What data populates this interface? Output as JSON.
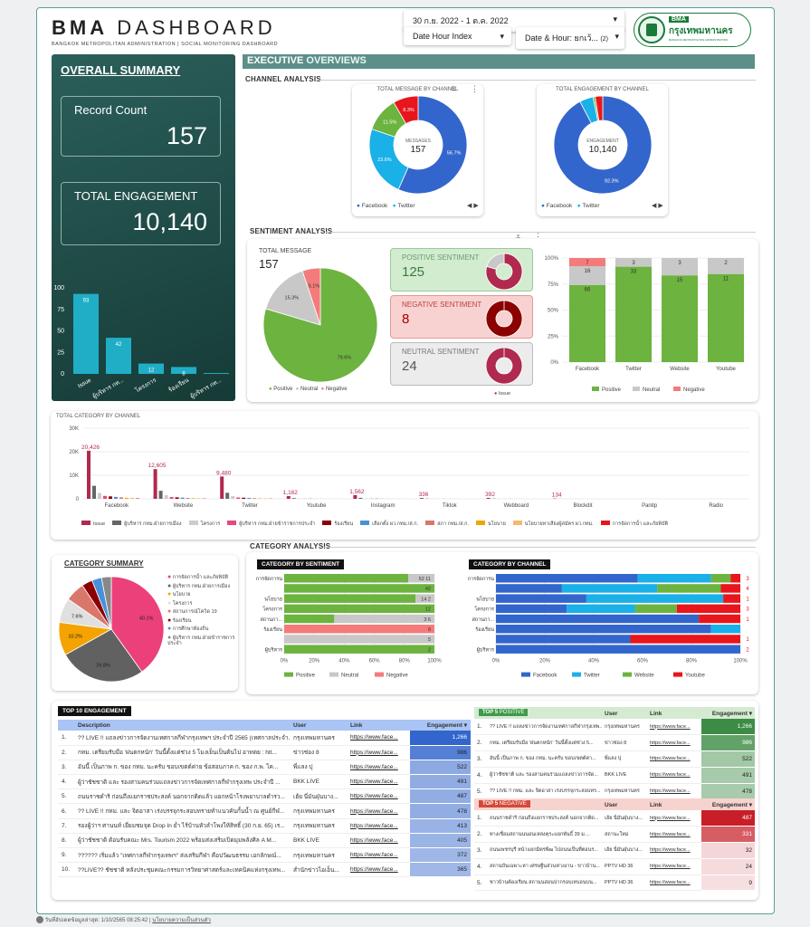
{
  "header": {
    "title_bold": "BMA",
    "title_light": "DASHBOARD",
    "subtitle": "BANGKOK METROPOLITAN ADMINISTRATION | SOCIAL MONITORING DASHBOARD",
    "date_range": "30 ก.ย. 2022 - 1 ต.ค. 2022",
    "filter1": "Date Hour Index",
    "filter2": "Date & Hour: ยกเว้...",
    "filter2_count": "(2)",
    "logo_abbr": "BMA",
    "logo_thai": "กรุงเทพมหานคร",
    "logo_en": "BANGKOK METROPOLITAN ADMINISTRATION"
  },
  "summary": {
    "title": "OVERALL SUMMARY",
    "record_label": "Record Count",
    "record_value": "157",
    "eng_label": "TOTAL ENGAGEMENT",
    "eng_value": "10,140",
    "bar": {
      "ticks": [
        "100",
        "75",
        "50",
        "25",
        "0"
      ],
      "values": [
        93,
        42,
        12,
        8,
        1
      ],
      "labels": [
        "93",
        "42",
        "12",
        "8",
        ""
      ],
      "cats": [
        "Issue",
        "ผู้บริหาร กท...",
        "โครงการ",
        "ร้องเรียน",
        "ผู้บริหาร กท..."
      ]
    }
  },
  "exec": {
    "title_a": "EXECUTIVE",
    "title_b": "OVERVIEWS",
    "channel_analysis": "CHANNEL ANALYSIS",
    "sentiment_analysis": "SENTIMENT ANALYSIS",
    "category_analysis": "CATEGORY ANALYSIS"
  },
  "donut1": {
    "title": "TOTAL MESSAGE BY CHANNEL",
    "center_label": "MESSAGES",
    "center_value": "157",
    "slices": [
      {
        "name": "Facebook",
        "pct": 56.7,
        "label": "56.7%",
        "color": "#3366cc"
      },
      {
        "name": "Twitter",
        "pct": 23.6,
        "label": "23.6%",
        "color": "#1ab0e8"
      },
      {
        "name": "Website",
        "pct": 11.5,
        "label": "11.5%",
        "color": "#6db33f"
      },
      {
        "name": "Youtube",
        "pct": 8.3,
        "label": "8.3%",
        "color": "#e8161c"
      }
    ],
    "legend": [
      "Facebook",
      "Twitter"
    ]
  },
  "donut2": {
    "title": "TOTAL ENGAGEMENT BY CHANNEL",
    "center_label": "ENGAGEMENT",
    "center_value": "10,140",
    "slices": [
      {
        "name": "Facebook",
        "pct": 92.3,
        "label": "92.3%",
        "color": "#3366cc"
      },
      {
        "name": "Twitter",
        "pct": 4.5,
        "label": "",
        "color": "#1ab0e8"
      },
      {
        "name": "Website",
        "pct": 0.7,
        "label": "",
        "color": "#6db33f"
      },
      {
        "name": "Youtube",
        "pct": 2.5,
        "label": "",
        "color": "#e8161c"
      }
    ],
    "legend": [
      "Facebook",
      "Twitter"
    ]
  },
  "sentiment": {
    "total_label": "TOTAL MESSAGE",
    "total_value": "157",
    "pie": [
      {
        "name": "Positive",
        "pct": 79.6,
        "label": "79.6%",
        "color": "#6db33f"
      },
      {
        "name": "Neutral",
        "pct": 15.3,
        "label": "15.3%",
        "color": "#c8c8c8"
      },
      {
        "name": "Negative",
        "pct": 5.1,
        "label": "5.1%",
        "color": "#f47b7b"
      }
    ],
    "pos_label": "POSITIVE SENTIMENT",
    "pos_value": "125",
    "neg_label": "NEGATIVE SENTIMENT",
    "neg_value": "8",
    "neu_label": "NEUTRAL SENTIMENT",
    "neu_value": "24",
    "issue_legend": "Issue",
    "stack": {
      "cats": [
        "Facebook",
        "Twitter",
        "Website",
        "Youtube"
      ],
      "pos": [
        66,
        33,
        15,
        11
      ],
      "neu": [
        16,
        3,
        3,
        2
      ],
      "neg": [
        7,
        0,
        0,
        0
      ],
      "ticks": [
        "100%",
        "75%",
        "50%",
        "25%",
        "0%"
      ],
      "legend": [
        "Positive",
        "Neutral",
        "Negative"
      ]
    }
  },
  "catchan": {
    "title": "TOTAL CATEGORY BY CHANNEL",
    "yticks": [
      "30K",
      "20K",
      "10K",
      "0"
    ],
    "channels": [
      "Facebook",
      "Website",
      "Twitter",
      "Youtube",
      "Instagram",
      "Tiktok",
      "Webboard",
      "Blockdit",
      "Pantip",
      "Radio"
    ],
    "peaks": [
      {
        "ch": 0,
        "v": 20426,
        "label": "20,426"
      },
      {
        "ch": 1,
        "v": 12605,
        "label": "12,605"
      },
      {
        "ch": 2,
        "v": 9480,
        "label": "9,480"
      },
      {
        "ch": 3,
        "v": 1162,
        "label": "1,162"
      },
      {
        "ch": 4,
        "v": 1562,
        "label": "1,562"
      },
      {
        "ch": 5,
        "v": 336,
        "label": "336"
      },
      {
        "ch": 6,
        "v": 392,
        "label": "392"
      },
      {
        "ch": 7,
        "v": 134,
        "label": "134"
      }
    ],
    "legend": [
      {
        "n": "Issue",
        "c": "#b0294e"
      },
      {
        "n": "ผู้บริหาร กทม.ฝ่ายการเมือง",
        "c": "#666"
      },
      {
        "n": "โครงการ",
        "c": "#ccc"
      },
      {
        "n": "ผู้บริหาร กทม.ฝ่ายข้าราชการประจำ",
        "c": "#e8477c"
      },
      {
        "n": "ร้องเรียน",
        "c": "#8b0000"
      },
      {
        "n": "เลือกตั้ง ผว.กทม./ส.ก.",
        "c": "#4a90d9"
      },
      {
        "n": "สภา กทม./ส.ก.",
        "c": "#d9776a"
      },
      {
        "n": "นโยบาย",
        "c": "#f0a500"
      },
      {
        "n": "นโยบายหาเสียงผู้สมัคร ผว.กทม.",
        "c": "#f5b86c"
      },
      {
        "n": "การจัดการน้ำ และภัยพิบัติ",
        "c": "#e8161c"
      }
    ]
  },
  "catsum": {
    "title": "CATEGORY SUMMARY",
    "slices": [
      {
        "name": "การจัดการน้ำ และภัยพิบัติ",
        "pct": 40.1,
        "label": "40.1%",
        "color": "#ec407a"
      },
      {
        "name": "ผู้บริหาร กทม.ฝ่ายการเมือง",
        "pct": 26.8,
        "label": "26.8%",
        "color": "#616161"
      },
      {
        "name": "นโยบาย",
        "pct": 10.2,
        "label": "10.2%",
        "color": "#f4a300"
      },
      {
        "name": "โครงการ",
        "pct": 7.6,
        "label": "7.6%",
        "color": "#e0e0e0"
      },
      {
        "name": "สถานการณ์โควิด 19",
        "pct": 6.0,
        "label": "",
        "color": "#d9776a"
      },
      {
        "name": "ร้องเรียน",
        "pct": 3.3,
        "label": "",
        "color": "#8b0000"
      },
      {
        "name": "การศึกษาท้องถิ่น",
        "pct": 3.0,
        "label": "",
        "color": "#4a90d9"
      },
      {
        "name": "ผู้บริหาร กทม.ฝ่ายข้าราชการประจำ",
        "pct": 3.0,
        "label": "",
        "color": "#888"
      }
    ]
  },
  "catsent": {
    "title": "CATEGORY BY SENTIMENT",
    "rows": [
      {
        "cat": "การจัดการน้ำ และภัยพิบัติ",
        "pos": 52,
        "neu": 11,
        "neg": 0
      },
      {
        "cat": "",
        "pos": 42,
        "neu": 0,
        "neg": 0
      },
      {
        "cat": "นโยบาย",
        "pos": 14,
        "neu": 2,
        "neg": 0
      },
      {
        "cat": "โครงการ",
        "pos": 12,
        "neu": 0,
        "neg": 0
      },
      {
        "cat": "สถานกา...",
        "pos": 3,
        "neu": 6,
        "neg": 0
      },
      {
        "cat": "ร้องเรียน",
        "pos": 0,
        "neu": 0,
        "neg": 8
      },
      {
        "cat": "",
        "pos": 0,
        "neu": 5,
        "neg": 0
      },
      {
        "cat": "ผู้บริหาร กทม.ฝ่ายข้าราชการ",
        "pos": 2,
        "neu": 0,
        "neg": 0
      }
    ],
    "labels": [
      [
        "52",
        "11"
      ],
      [
        "42"
      ],
      [
        "14",
        "2"
      ],
      [
        "12"
      ],
      [
        "3",
        "6"
      ],
      [
        "8"
      ],
      [
        "5"
      ],
      [
        "2"
      ]
    ],
    "ticks": [
      "0%",
      "20%",
      "40%",
      "60%",
      "80%",
      "100%"
    ],
    "legend": [
      "Positive",
      "Neutral",
      "Negative"
    ]
  },
  "catchannel": {
    "title": "CATEGORY BY CHANNEL",
    "rows": [
      {
        "cat": "การจัดการน้ำ และภัยพิบัติ",
        "fb": 58,
        "tw": 30,
        "web": 8,
        "yt": 4,
        "lbl": "3"
      },
      {
        "cat": "",
        "fb": 27,
        "tw": 39,
        "web": 26,
        "yt": 8,
        "lbl": "4"
      },
      {
        "cat": "นโยบาย",
        "fb": 37,
        "tw": 56,
        "web": 0,
        "yt": 7,
        "lbl": "1"
      },
      {
        "cat": "โครงการ",
        "fb": 29,
        "tw": 28,
        "web": 17,
        "yt": 26,
        "lbl": "3"
      },
      {
        "cat": "สถานกา...",
        "fb": 83,
        "tw": 0,
        "web": 0,
        "yt": 17,
        "lbl": "1"
      },
      {
        "cat": "ร้องเรียน",
        "fb": 88,
        "tw": 12,
        "web": 0,
        "yt": 0,
        "lbl": ""
      },
      {
        "cat": "",
        "fb": 55,
        "tw": 0,
        "web": 0,
        "yt": 45,
        "lbl": "1"
      },
      {
        "cat": "ผู้บริหาร กทม.ฝ่ายข้าราชการ",
        "fb": 100,
        "tw": 0,
        "web": 0,
        "yt": 0,
        "lbl": "2"
      }
    ],
    "ticks": [
      "0%",
      "20%",
      "40%",
      "60%",
      "80%",
      "100%"
    ],
    "legend": [
      "Facebook",
      "Twitter",
      "Website",
      "Youtube"
    ]
  },
  "top10": {
    "title": "TOP 10 ENGAGEMENT",
    "cols": [
      "Description",
      "User",
      "Link",
      "Engagement ▾"
    ],
    "rows": [
      [
        "1.",
        "?? LIVE !! แถลงข่าวการจัดงานเทศกาลกีฬากรุงเทพฯ ประจำปี 2565 (เทศกาลประจำ...",
        "กรุงเทพมหานคร",
        "https://www.face...",
        "1,266"
      ],
      [
        "2.",
        "กทม. เตรียมรับมือ 'ฝนตกหนัก' วันนี้ตั้งแต่ช่วง 5 โมงเย็นเป็นต้นไป อาทตย  : htt...",
        "ข่าวช่อง 8",
        "https://www.face...",
        "986"
      ],
      [
        "3.",
        "อันนี้ เป็นภาพ ก. ของ กทม. นะครับ ขอบเขตต์ค่าย ข้อสอบภาค ก. ของ ก.พ. ไค...",
        "พี่แลง ปุ",
        "https://www.face...",
        "522"
      ],
      [
        "4.",
        "ผู้ว่าชัชชาติ และ รองสามคนร่วมแถลงข่าวการจัดเทศกาลกีฬากรุงเทพ ประจำปี ...",
        "BKK LIVE",
        "https://www.face...",
        "491"
      ],
      [
        "5.",
        "ถนนราชดำริ ก่อนถึงแยกราชประสงค์ นอกจากติดแล้ว แยกหน้าโรงพยาบาลตำรว...",
        "เฮ้ย นี่มันฝุ่นบาง...",
        "https://www.face...",
        "487"
      ],
      [
        "6.",
        "?? LIVE !! กทม. และ จิตอาสา เร่งบรรจุกระสอบทรายทำแนวคันกั้นน้ำ ณ ศูนย์กีฬ...",
        "กรุงเทพมหานคร",
        "https://www.face...",
        "478"
      ],
      [
        "7.",
        "รองผู้ว่าฯ ศานนท์ เยี่ยมชมจุด Drop In ย่ำ ไร้บ้านหัวลำโพงให้สิทธิ์ (30 ก.ย. 65) เร...",
        "กรุงเทพมหานคร",
        "https://www.face...",
        "413"
      ],
      [
        "8.",
        "ผู้ว่าชัชชาติ ต้อนรับคณะ Mrs. Tourism 2022 พร้อมส่งเสริมเปิดมุมพลังศิล A M...",
        "BKK LIVE",
        "https://www.face...",
        "405"
      ],
      [
        "9.",
        "?????? เริ่มแล้ว \"เทศกาลกีฬากรุงเทพฯ\" ส่งเสริมกีฬา คือปวัฒนธรรม เอกลักษณ์...",
        "กรุงเทพมหานคร",
        "https://www.face...",
        "372"
      ],
      [
        "10.",
        "??LIVE?? ชัชชาติ หลังประชุมคณะกรรมการวิทยาศาสตร์และเทคนิคแห่งกรุงเทพ...",
        "สำนักข่าวไอเอ็น...",
        "https://www.face...",
        "365"
      ]
    ],
    "values": [
      1266,
      986,
      522,
      491,
      487,
      478,
      413,
      405,
      372,
      365
    ]
  },
  "top5pos": {
    "title_a": "TOP 5",
    "title_b": "POSITIVE",
    "cols": [
      "User",
      "Link",
      "Engagement ▾"
    ],
    "rows": [
      [
        "1.",
        "?? LIVE !! แถลงข่าวการจัดงานเทศกาลกีฬากรุงเทพ...",
        "กรุงเทพมหานคร",
        "https://www.face...",
        "1,266"
      ],
      [
        "2.",
        "กทม. เตรียมรับมือ 'ฝนตกหนัก' วันนี้ตั้งแต่ช่วง 5...",
        "ข่าวช่อง 8",
        "https://www.face...",
        "986"
      ],
      [
        "3.",
        "อันนี้ เป็นภาพ ก. ของ กทม. นะครับ ขอบเขตต์ค่า...",
        "พี่แลง ปุ",
        "https://www.face...",
        "522"
      ],
      [
        "4.",
        "ผู้ว่าชัชชาติ และ รองสามคนร่วมแถลงข่าวการจัด...",
        "BKK LIVE",
        "https://www.face...",
        "491"
      ],
      [
        "5.",
        "?? LIVE !! กทม. และ จิตอาสา เร่งบรรจุกระสอบทร...",
        "กรุงเทพมหานคร",
        "https://www.face...",
        "478"
      ]
    ],
    "values": [
      1266,
      986,
      522,
      491,
      478
    ]
  },
  "top5neg": {
    "title_a": "TOP 5",
    "title_b": "NEGATIVE",
    "cols": [
      "User",
      "Link",
      "Engagement ▾"
    ],
    "rows": [
      [
        "1.",
        "ถนนราชดำริ ก่อนถึงแยกราชประสงค์ นอกจากติด...",
        "เฮ้ย นี่มันฝุ่นบาง...",
        "https://www.face...",
        "487"
      ],
      [
        "2.",
        "ทางเชื่อมสถานนนอนเหล่งคุระแยกพันธิ์ 39 ม....",
        "สถานะใหม่",
        "https://www.face...",
        "331"
      ],
      [
        "3.",
        "ถนนเพชรบุรี หน้าแยกมิตรพีฒ ไปถนนเป็นที่ตอนร...",
        "เฮ้ย นี่มันฝุ่นบาง...",
        "https://www.face...",
        "32"
      ],
      [
        "4.",
        "สถานบันเฉพาะหา เศรษฐีนส่วนห่างงาน - ขาวบ้าน...",
        "PPTV HD 36",
        "https://www.face...",
        "24"
      ],
      [
        "5.",
        "ชาวบ้านต้องเรียน สถานนสอนปากรอบเหบอนบน...",
        "PPTV HD 36",
        "https://www.face...",
        "9"
      ]
    ],
    "values": [
      487,
      331,
      32,
      24,
      9
    ]
  },
  "footer": {
    "updated": "วันที่อัปเดตข้อมูลล่าสุด: 1/10/2565 08:25:42",
    "privacy": "นโยบายความเป็นส่วนตัว"
  }
}
